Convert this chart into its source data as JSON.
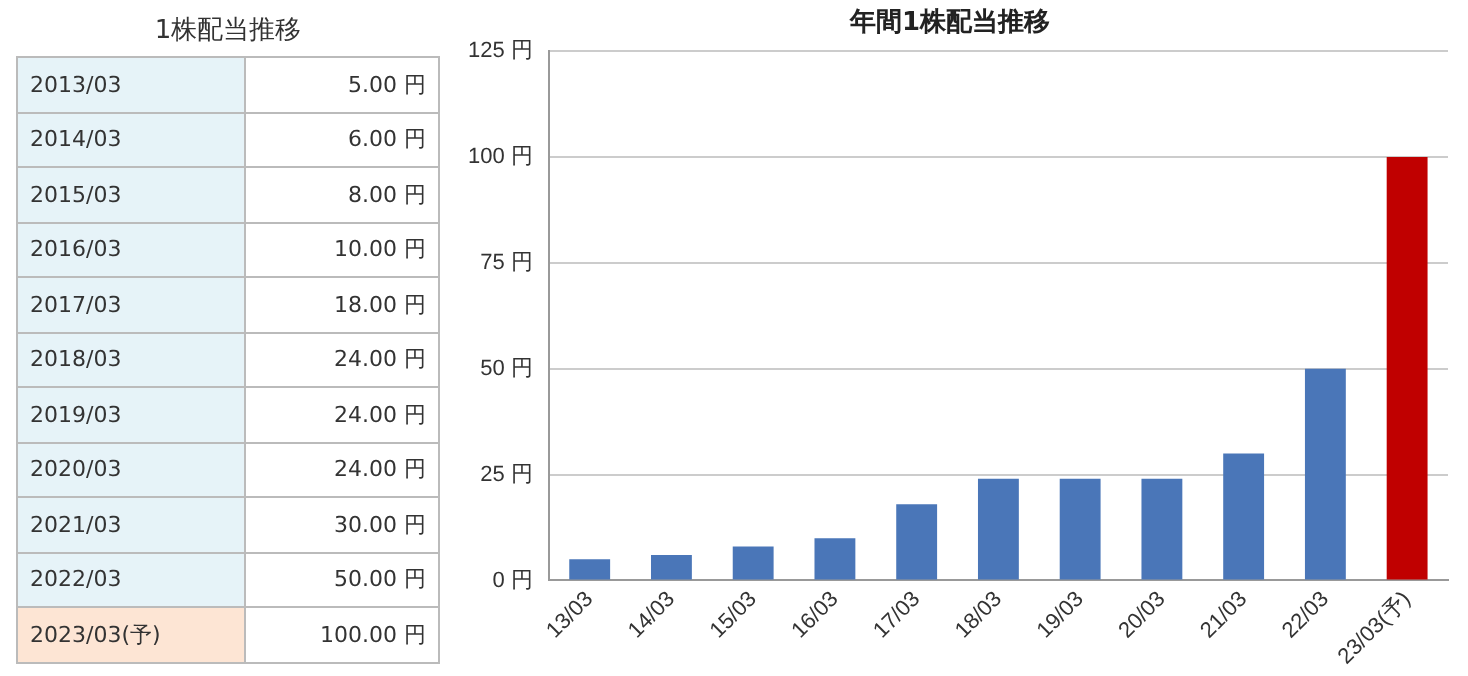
{
  "chart_data": [
    {
      "type": "other",
      "title": "1株配当推移",
      "categories": [
        "2013/03",
        "2014/03",
        "2015/03",
        "2016/03",
        "2017/03",
        "2018/03",
        "2019/03",
        "2020/03",
        "2021/03",
        "2022/03",
        "2023/03(予)"
      ],
      "value_labels": [
        "5.00 円",
        "6.00 円",
        "8.00 円",
        "10.00 円",
        "18.00 円",
        "24.00 円",
        "24.00 円",
        "24.00 円",
        "30.00 円",
        "50.00 円",
        "100.00 円"
      ]
    },
    {
      "type": "bar",
      "title": "年間1株配当推移",
      "categories": [
        "13/03",
        "14/03",
        "15/03",
        "16/03",
        "17/03",
        "18/03",
        "19/03",
        "20/03",
        "21/03",
        "22/03",
        "23/03(予)"
      ],
      "values": [
        5,
        6,
        8,
        10,
        18,
        24,
        24,
        24,
        30,
        50,
        100
      ],
      "colors": [
        "#4a76b8",
        "#4a76b8",
        "#4a76b8",
        "#4a76b8",
        "#4a76b8",
        "#4a76b8",
        "#4a76b8",
        "#4a76b8",
        "#4a76b8",
        "#4a76b8",
        "#c00000"
      ],
      "ylim": [
        0,
        125
      ],
      "yticks": [
        {
          "value": 0,
          "label": "0 円"
        },
        {
          "value": 25,
          "label": "25 円"
        },
        {
          "value": 50,
          "label": "50 円"
        },
        {
          "value": 75,
          "label": "75 円"
        },
        {
          "value": 100,
          "label": "100 円"
        },
        {
          "value": 125,
          "label": "125 円"
        }
      ],
      "grid": "y"
    }
  ]
}
